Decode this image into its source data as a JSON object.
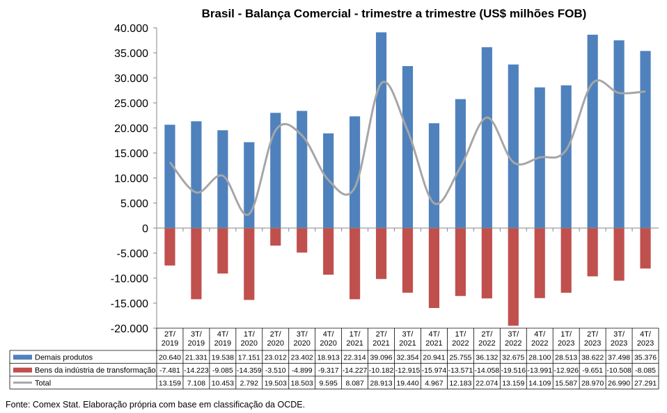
{
  "chart_data": {
    "type": "bar",
    "title": "Brasil - Balança Comercial - trimestre a trimestre (US$ milhões FOB)",
    "categories": [
      "2T/ 2019",
      "3T/ 2019",
      "4T/ 2019",
      "1T/ 2020",
      "2T/ 2020",
      "3T/ 2020",
      "4T/ 2020",
      "1T/ 2021",
      "2T/ 2021",
      "3T/ 2021",
      "4T/ 2021",
      "1T/ 2022",
      "2T/ 2022",
      "3T/ 2022",
      "4T/ 2022",
      "1T/ 2023",
      "2T/ 2023",
      "3T/ 2023",
      "4T/ 2023"
    ],
    "ylim": [
      -20000,
      40000
    ],
    "yticks": [
      "40.000",
      "35.000",
      "30.000",
      "25.000",
      "20.000",
      "15.000",
      "10.000",
      "5.000",
      "0",
      "-5.000",
      "-10.000",
      "-15.000",
      "-20.000"
    ],
    "gridlines": false,
    "legend": "table-bottom",
    "series": [
      {
        "name": "Demais produtos",
        "kind": "bar",
        "color": "#4F81BD",
        "values": [
          20640,
          21331,
          19538,
          17151,
          23012,
          23402,
          18913,
          22314,
          39096,
          32354,
          20941,
          25755,
          36132,
          32675,
          28100,
          28513,
          38622,
          37498,
          35376
        ],
        "labels": [
          "20.640",
          "21.331",
          "19.538",
          "17.151",
          "23.012",
          "23.402",
          "18.913",
          "22.314",
          "39.096",
          "32.354",
          "20.941",
          "25.755",
          "36.132",
          "32.675",
          "28.100",
          "28.513",
          "38.622",
          "37.498",
          "35.376"
        ]
      },
      {
        "name": "Bens da indústria de transformação",
        "kind": "bar",
        "color": "#C0504D",
        "values": [
          -7481,
          -14223,
          -9085,
          -14359,
          -3510,
          -4899,
          -9317,
          -14227,
          -10182,
          -12915,
          -15974,
          -13571,
          -14058,
          -19516,
          -13991,
          -12926,
          -9651,
          -10508,
          -8085
        ],
        "labels": [
          "-7.481",
          "-14.223",
          "-9.085",
          "-14.359",
          "-3.510",
          "-4.899",
          "-9.317",
          "-14.227",
          "-10.182",
          "-12.915",
          "-15.974",
          "-13.571",
          "-14.058",
          "-19.516",
          "-13.991",
          "-12.926",
          "-9.651",
          "-10.508",
          "-8.085"
        ]
      },
      {
        "name": "Total",
        "kind": "line",
        "color": "#A6A6A6",
        "values": [
          13159,
          7108,
          10453,
          2792,
          19503,
          18503,
          9595,
          8087,
          28913,
          19440,
          4967,
          12183,
          22074,
          13159,
          14109,
          15587,
          28970,
          26990,
          27291
        ],
        "labels": [
          "13.159",
          "7.108",
          "10.453",
          "2.792",
          "19.503",
          "18.503",
          "9.595",
          "8.087",
          "28.913",
          "19.440",
          "4.967",
          "12.183",
          "22.074",
          "13.159",
          "14.109",
          "15.587",
          "28.970",
          "26.990",
          "27.291"
        ]
      }
    ],
    "source_note": "Fonte: Comex Stat. Elaboração própria com base em classificação da OCDE."
  }
}
